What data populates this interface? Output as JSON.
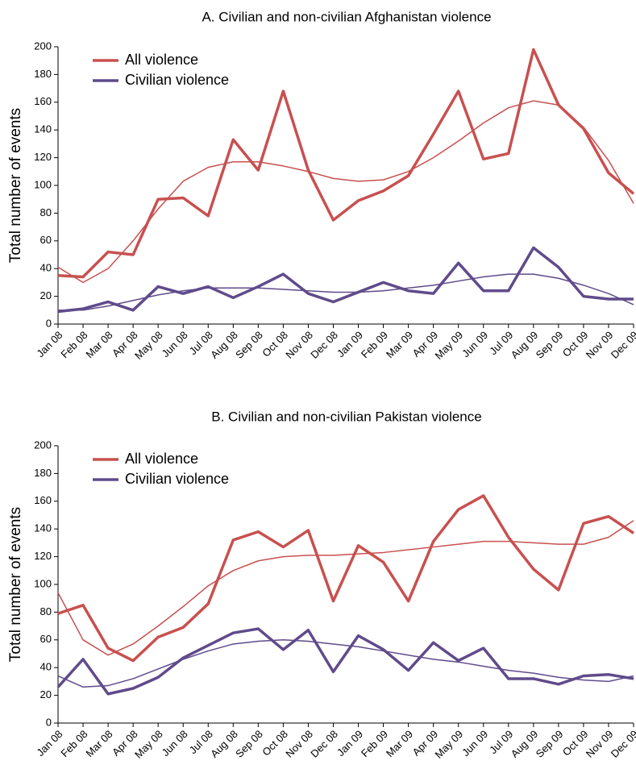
{
  "chart_data": [
    {
      "type": "line",
      "title": "A. Civilian and non-civilian Afghanistan violence",
      "y_label": "Total number of events",
      "categories": [
        "Jan 08",
        "Feb 08",
        "Mar 08",
        "Apr 08",
        "May 08",
        "Jun 08",
        "Jul 08",
        "Aug 08",
        "Sep 08",
        "Oct 08",
        "Nov 08",
        "Dec 08",
        "Jan 09",
        "Feb 09",
        "Mar 09",
        "Apr 09",
        "May 09",
        "Jun 09",
        "Jul 09",
        "Aug 09",
        "Sep 09",
        "Oct 09",
        "Nov 09",
        "Dec 09"
      ],
      "ylim": [
        0,
        200
      ],
      "yticks": [
        0,
        20,
        40,
        60,
        80,
        100,
        120,
        140,
        160,
        180,
        200
      ],
      "grid": false,
      "legend": "upper left",
      "series": [
        {
          "name": "All violence",
          "color": "#c8504f",
          "values": [
            35,
            34,
            52,
            50,
            90,
            91,
            78,
            133,
            111,
            168,
            111,
            75,
            89,
            96,
            107,
            137,
            168,
            119,
            123,
            198,
            158,
            141,
            109,
            94
          ],
          "trend": [
            41,
            30,
            40,
            60,
            83,
            103,
            113,
            117,
            117,
            114,
            110,
            105,
            103,
            104,
            110,
            120,
            132,
            145,
            156,
            161,
            158,
            142,
            118,
            87
          ]
        },
        {
          "name": "Civilian violence",
          "color": "#5f4b8b",
          "values": [
            9,
            11,
            16,
            10,
            27,
            22,
            27,
            19,
            27,
            36,
            22,
            16,
            23,
            30,
            24,
            22,
            44,
            24,
            24,
            55,
            41,
            20,
            18,
            18
          ],
          "trend": [
            10,
            10,
            13,
            17,
            21,
            24,
            26,
            26,
            26,
            25,
            24,
            23,
            23,
            24,
            26,
            28,
            31,
            34,
            36,
            36,
            33,
            28,
            22,
            14
          ]
        }
      ]
    },
    {
      "type": "line",
      "title": "B. Civilian and non-civilian Pakistan violence",
      "y_label": "Total number of events",
      "categories": [
        "Jan 08",
        "Feb 08",
        "Mar 08",
        "Apr 08",
        "May 08",
        "Jun 08",
        "Jul 08",
        "Aug 08",
        "Sep 08",
        "Oct 08",
        "Nov 08",
        "Dec 08",
        "Jan 09",
        "Feb 09",
        "Mar 09",
        "Apr 09",
        "May 09",
        "Jun 09",
        "Jul 09",
        "Aug 09",
        "Sep 09",
        "Oct 09",
        "Nov 09",
        "Dec 09"
      ],
      "ylim": [
        0,
        200
      ],
      "yticks": [
        0,
        20,
        40,
        60,
        80,
        100,
        120,
        140,
        160,
        180,
        200
      ],
      "grid": false,
      "legend": "upper left",
      "series": [
        {
          "name": "All violence",
          "color": "#c8504f",
          "values": [
            79,
            85,
            54,
            45,
            62,
            69,
            86,
            132,
            138,
            127,
            139,
            88,
            128,
            116,
            88,
            131,
            154,
            164,
            134,
            111,
            96,
            144,
            149,
            137
          ],
          "trend": [
            94,
            60,
            49,
            57,
            70,
            84,
            99,
            110,
            117,
            120,
            121,
            121,
            122,
            123,
            125,
            127,
            129,
            131,
            131,
            130,
            129,
            129,
            134,
            146
          ]
        },
        {
          "name": "Civilian violence",
          "color": "#5f4b8b",
          "values": [
            26,
            46,
            21,
            25,
            33,
            47,
            56,
            65,
            68,
            53,
            67,
            37,
            63,
            53,
            38,
            58,
            45,
            54,
            32,
            32,
            28,
            34,
            35,
            32
          ],
          "trend": [
            34,
            26,
            27,
            32,
            39,
            46,
            52,
            57,
            59,
            60,
            59,
            57,
            55,
            52,
            49,
            46,
            44,
            41,
            38,
            36,
            33,
            31,
            30,
            34
          ]
        }
      ]
    }
  ]
}
